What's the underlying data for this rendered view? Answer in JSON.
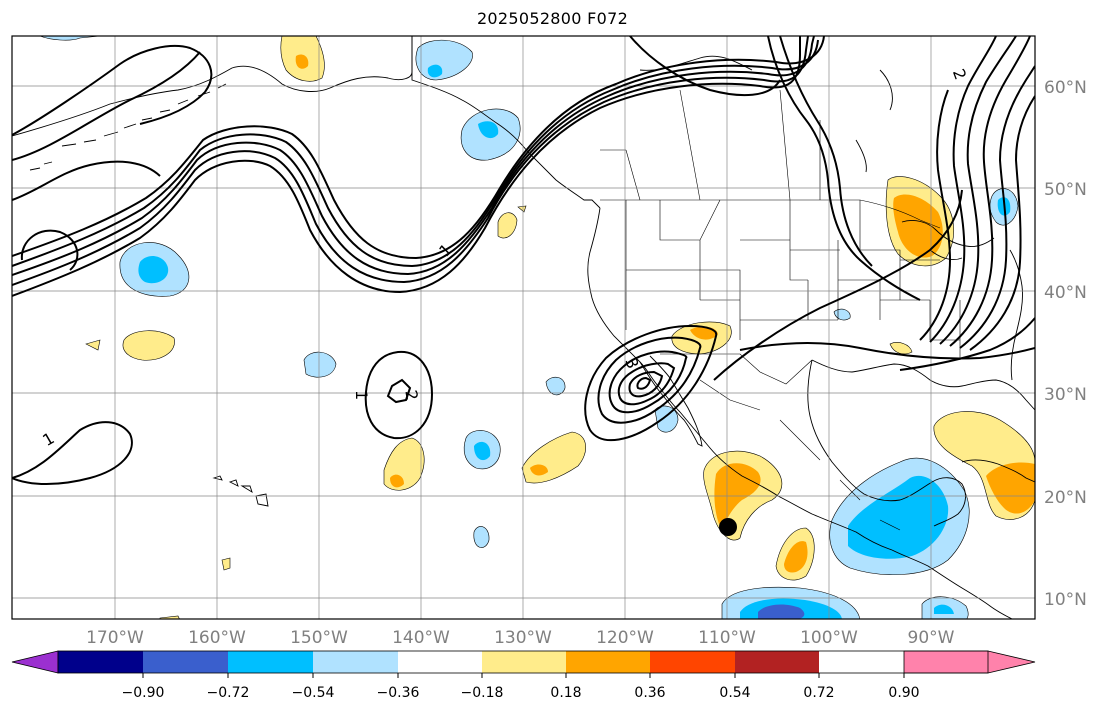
{
  "title": "2025052800 F072",
  "map": {
    "lat_labels": [
      "60°N",
      "50°N",
      "40°N",
      "30°N",
      "20°N",
      "10°N"
    ],
    "lon_labels": [
      "170°W",
      "160°W",
      "150°W",
      "140°W",
      "130°W",
      "120°W",
      "110°W",
      "100°W",
      "90°W"
    ],
    "contour_labels": [
      "1",
      "2",
      "3",
      "1",
      "2",
      "1"
    ],
    "marker": "filled-circle"
  },
  "colorbar": {
    "tick_labels": [
      "−0.90",
      "−0.72",
      "−0.54",
      "−0.36",
      "−0.18",
      "0.18",
      "0.36",
      "0.54",
      "0.72",
      "0.90"
    ],
    "colors": [
      "#9b30d0",
      "#00008b",
      "#3a5fcd",
      "#00bfff",
      "#b0e2ff",
      "#ffffff",
      "#ffec8b",
      "#ffa500",
      "#ff4500",
      "#b22222",
      "#ff82ab"
    ]
  }
}
